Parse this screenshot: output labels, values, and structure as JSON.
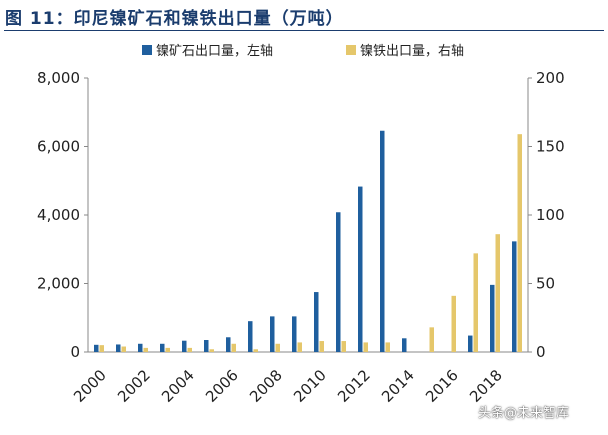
{
  "header": {
    "title": "图 11：印尼镍矿石和镍铁出口量（万吨）"
  },
  "colors": {
    "title": "#1b3d6e",
    "ore": "#1f5f9e",
    "ferronickel": "#e5c76b",
    "axis": "#888888"
  },
  "watermark": "头条@未来智库",
  "chart_data": {
    "type": "bar",
    "categories": [
      "2000",
      "2001",
      "2002",
      "2003",
      "2004",
      "2005",
      "2006",
      "2007",
      "2008",
      "2009",
      "2010",
      "2011",
      "2012",
      "2013",
      "2014",
      "2015",
      "2016",
      "2017",
      "2018",
      "2019"
    ],
    "x_tick_labels": [
      "2000",
      "2002",
      "2004",
      "2006",
      "2008",
      "2010",
      "2012",
      "2014",
      "2016",
      "2018"
    ],
    "y_left": {
      "min": 0,
      "max": 8000,
      "ticks": [
        "0",
        "2,000",
        "4,000",
        "6,000",
        "8,000"
      ]
    },
    "y_right": {
      "min": 0,
      "max": 200,
      "ticks": [
        "0",
        "50",
        "100",
        "150",
        "200"
      ]
    },
    "grid": false,
    "legend_position": "top",
    "series": [
      {
        "name": "镍矿石出口量，左轴",
        "axis": "left",
        "values": [
          210,
          220,
          240,
          240,
          330,
          350,
          430,
          900,
          1040,
          1040,
          1750,
          4080,
          4830,
          6460,
          400,
          0,
          0,
          480,
          1960,
          3230
        ]
      },
      {
        "name": "镍铁出口量，右轴",
        "axis": "right",
        "values": [
          5,
          4,
          3,
          3,
          3,
          2,
          6,
          2,
          6,
          7,
          8,
          8,
          7,
          7,
          0,
          18,
          41,
          72,
          86,
          159
        ]
      }
    ]
  }
}
